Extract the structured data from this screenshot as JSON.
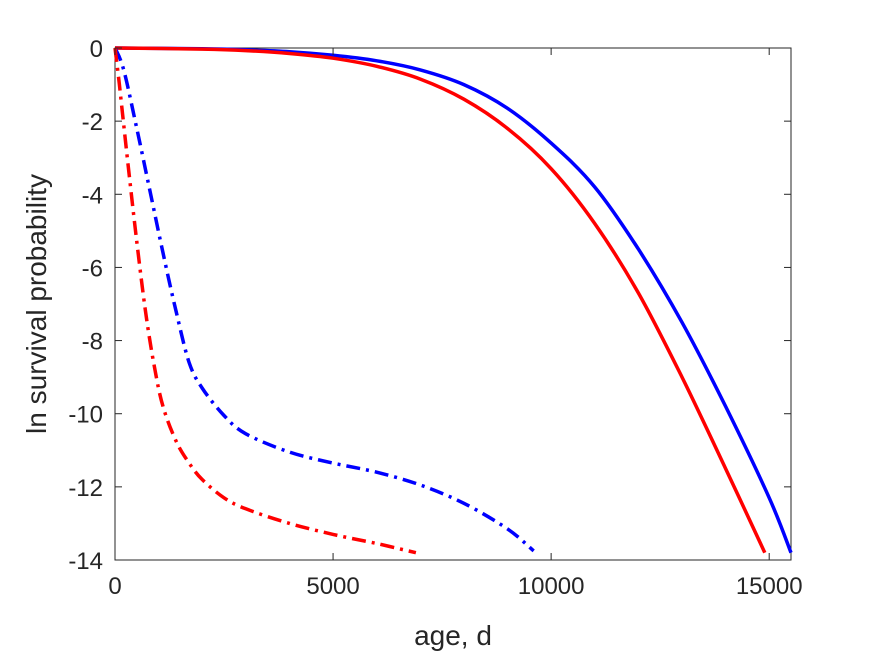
{
  "chart_data": {
    "type": "line",
    "title": "",
    "xlabel": "age, d",
    "ylabel": "ln survival probability",
    "xlim": [
      0,
      15500
    ],
    "ylim": [
      -14,
      0
    ],
    "xticks": [
      0,
      5000,
      10000,
      15000
    ],
    "xtick_labels": [
      "0",
      "5000",
      "10000",
      "15000"
    ],
    "yticks": [
      0,
      -2,
      -4,
      -6,
      -8,
      -10,
      -12,
      -14
    ],
    "ytick_labels": [
      "0",
      "-2",
      "-4",
      "-6",
      "-8",
      "-10",
      "-12",
      "-14"
    ],
    "grid": false,
    "series": [
      {
        "color": "#0000ff",
        "style": "solid",
        "x": [
          0,
          2000,
          3000,
          4000,
          5000,
          6000,
          7000,
          8000,
          9000,
          10000,
          11000,
          12000,
          13000,
          14000,
          15000,
          15500
        ],
        "y": [
          0,
          -0.02,
          -0.05,
          -0.1,
          -0.2,
          -0.35,
          -0.6,
          -1.0,
          -1.65,
          -2.6,
          -3.8,
          -5.5,
          -7.5,
          -9.8,
          -12.3,
          -13.8
        ]
      },
      {
        "color": "#ff0000",
        "style": "solid",
        "x": [
          0,
          2000,
          3000,
          4000,
          5000,
          6000,
          7000,
          8000,
          9000,
          10000,
          11000,
          12000,
          13000,
          14000,
          14900
        ],
        "y": [
          0,
          -0.03,
          -0.07,
          -0.15,
          -0.28,
          -0.5,
          -0.85,
          -1.4,
          -2.2,
          -3.3,
          -4.8,
          -6.7,
          -9.0,
          -11.5,
          -13.8
        ]
      },
      {
        "color": "#0000ff",
        "style": "dashdot",
        "x": [
          0,
          200,
          500,
          800,
          1100,
          1400,
          1700,
          2000,
          2500,
          3000,
          4000,
          5000,
          6000,
          7000,
          8000,
          9000,
          9600
        ],
        "y": [
          0,
          -0.6,
          -2.2,
          -3.9,
          -5.6,
          -7.2,
          -8.6,
          -9.3,
          -10.05,
          -10.55,
          -11.05,
          -11.35,
          -11.6,
          -11.95,
          -12.45,
          -13.15,
          -13.75
        ]
      },
      {
        "color": "#ff0000",
        "style": "dashdot",
        "x": [
          0,
          100,
          300,
          500,
          700,
          900,
          1100,
          1400,
          1700,
          2000,
          2500,
          3000,
          4000,
          5000,
          6000,
          6900
        ],
        "y": [
          0,
          -1.0,
          -3.2,
          -5.3,
          -7.2,
          -8.7,
          -9.8,
          -10.75,
          -11.35,
          -11.8,
          -12.3,
          -12.6,
          -13.0,
          -13.3,
          -13.55,
          -13.8
        ]
      }
    ]
  }
}
